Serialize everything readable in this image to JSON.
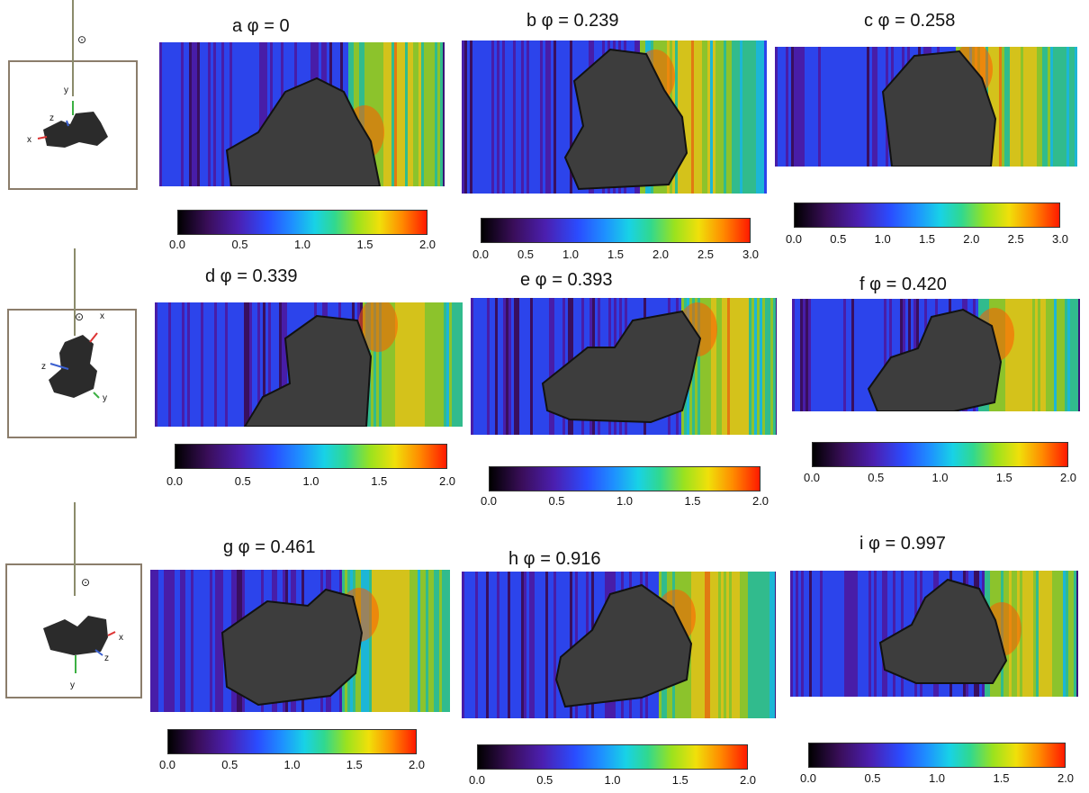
{
  "sun_symbol": "⊙",
  "orientation_insets": [
    {
      "labels": {
        "y": "y",
        "z": "z",
        "x": "x"
      }
    },
    {
      "labels": {
        "x": "x",
        "z": "z",
        "y": "y"
      }
    },
    {
      "labels": {
        "x": "x",
        "z": "z",
        "y": "y"
      }
    }
  ],
  "panels": [
    {
      "letter": "a",
      "title": "a φ = 0",
      "colorbar_ticks": [
        "0.0",
        "0.5",
        "1.0",
        "1.5",
        "2.0"
      ]
    },
    {
      "letter": "b",
      "title": "b  φ = 0.239",
      "colorbar_ticks": [
        "0.0",
        "0.5",
        "1.0",
        "1.5",
        "2.0",
        "2.5",
        "3.0"
      ]
    },
    {
      "letter": "c",
      "title": "c  φ = 0.258",
      "colorbar_ticks": [
        "0.0",
        "0.5",
        "1.0",
        "1.5",
        "2.0",
        "2.5",
        "3.0"
      ]
    },
    {
      "letter": "d",
      "title": "d φ = 0.339",
      "colorbar_ticks": [
        "0.0",
        "0.5",
        "1.0",
        "1.5",
        "2.0"
      ]
    },
    {
      "letter": "e",
      "title": "e φ = 0.393",
      "colorbar_ticks": [
        "0.0",
        "0.5",
        "1.0",
        "1.5",
        "2.0"
      ]
    },
    {
      "letter": "f",
      "title": "f φ = 0.420",
      "colorbar_ticks": [
        "0.0",
        "0.5",
        "1.0",
        "1.5",
        "2.0"
      ]
    },
    {
      "letter": "g",
      "title": "g φ = 0.461",
      "colorbar_ticks": [
        "0.0",
        "0.5",
        "1.0",
        "1.5",
        "2.0"
      ]
    },
    {
      "letter": "h",
      "title": "h φ = 0.916",
      "colorbar_ticks": [
        "0.0",
        "0.5",
        "1.0",
        "1.5",
        "2.0"
      ]
    },
    {
      "letter": "i",
      "title": "i φ = 0.997",
      "colorbar_ticks": [
        "0.0",
        "0.5",
        "1.0",
        "1.5",
        "2.0"
      ]
    }
  ],
  "colormap": [
    "#000000",
    "#3a0e5a",
    "#4b1fb0",
    "#2a4cff",
    "#1e90ff",
    "#18d2e6",
    "#30d890",
    "#9be21e",
    "#f0e00a",
    "#ff8c00",
    "#ff1a00"
  ]
}
